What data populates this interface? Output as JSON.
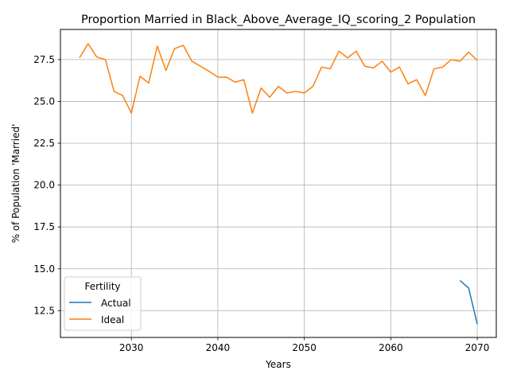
{
  "chart_data": {
    "type": "line",
    "title": "Proportion Married in Black_Above_Average_IQ_scoring_2 Population",
    "xlabel": "Years",
    "ylabel": "% of Population 'Married'",
    "xlim": [
      2021.8,
      2072.2
    ],
    "ylim": [
      10.9,
      29.3
    ],
    "xticks": [
      2030,
      2040,
      2050,
      2060,
      2070
    ],
    "yticks": [
      12.5,
      15.0,
      17.5,
      20.0,
      22.5,
      25.0,
      27.5
    ],
    "xtick_labels": [
      "2030",
      "2040",
      "2050",
      "2060",
      "2070"
    ],
    "ytick_labels": [
      "12.5",
      "15.0",
      "17.5",
      "20.0",
      "22.5",
      "25.0",
      "27.5"
    ],
    "grid": true,
    "legend": {
      "title": "Fertility",
      "position": "lower-left"
    },
    "series": [
      {
        "name": "Actual",
        "color": "#1f77b4",
        "x": [
          2068,
          2069,
          2070
        ],
        "values": [
          14.3,
          13.85,
          11.7
        ]
      },
      {
        "name": "Ideal",
        "color": "#ff7f0e",
        "x": [
          2024,
          2025,
          2026,
          2027,
          2028,
          2029,
          2030,
          2031,
          2032,
          2033,
          2034,
          2035,
          2036,
          2037,
          2038,
          2039,
          2040,
          2041,
          2042,
          2043,
          2044,
          2045,
          2046,
          2047,
          2048,
          2049,
          2050,
          2051,
          2052,
          2053,
          2054,
          2055,
          2056,
          2057,
          2058,
          2059,
          2060,
          2061,
          2062,
          2063,
          2064,
          2065,
          2066,
          2067,
          2068,
          2069,
          2070
        ],
        "values": [
          27.6,
          28.45,
          27.65,
          27.5,
          25.6,
          25.35,
          24.3,
          26.5,
          26.1,
          28.3,
          26.85,
          28.15,
          28.35,
          27.4,
          27.1,
          26.8,
          26.45,
          26.45,
          26.15,
          26.3,
          24.3,
          25.8,
          25.25,
          25.9,
          25.5,
          25.6,
          25.5,
          25.9,
          27.05,
          26.95,
          28.0,
          27.6,
          28.0,
          27.1,
          27.0,
          27.4,
          26.75,
          27.05,
          26.05,
          26.3,
          25.35,
          26.95,
          27.05,
          27.5,
          27.4,
          27.95,
          27.45
        ]
      }
    ]
  }
}
